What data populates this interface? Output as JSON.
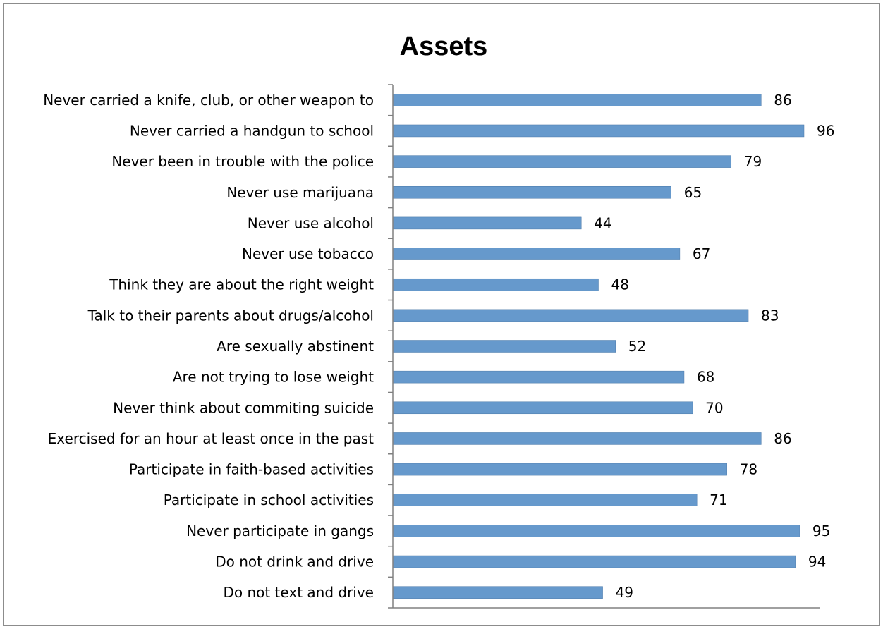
{
  "chart_data": {
    "type": "bar",
    "orientation": "horizontal",
    "title": "Assets",
    "xlabel": "",
    "ylabel": "",
    "xlim": [
      0,
      100
    ],
    "grid": false,
    "legend": "none",
    "colors": {
      "bar": "#6699cc",
      "axis": "#808080",
      "text": "#000000"
    },
    "categories": [
      "Never carried a knife, club, or other weapon to",
      "Never carried a handgun to school",
      "Never been in trouble with the police",
      "Never use marijuana",
      "Never use alcohol",
      "Never use tobacco",
      "Think they are about the right weight",
      "Talk to their parents about drugs/alcohol",
      "Are sexually abstinent",
      "Are not trying to lose weight",
      "Never think about commiting suicide",
      "Exercised for an hour at least once in the past",
      "Participate in faith-based activities",
      "Participate in school activities",
      "Never participate in gangs",
      "Do not drink and drive",
      "Do not text and drive"
    ],
    "values": [
      86,
      96,
      79,
      65,
      44,
      67,
      48,
      83,
      52,
      68,
      70,
      86,
      78,
      71,
      95,
      94,
      49
    ]
  }
}
